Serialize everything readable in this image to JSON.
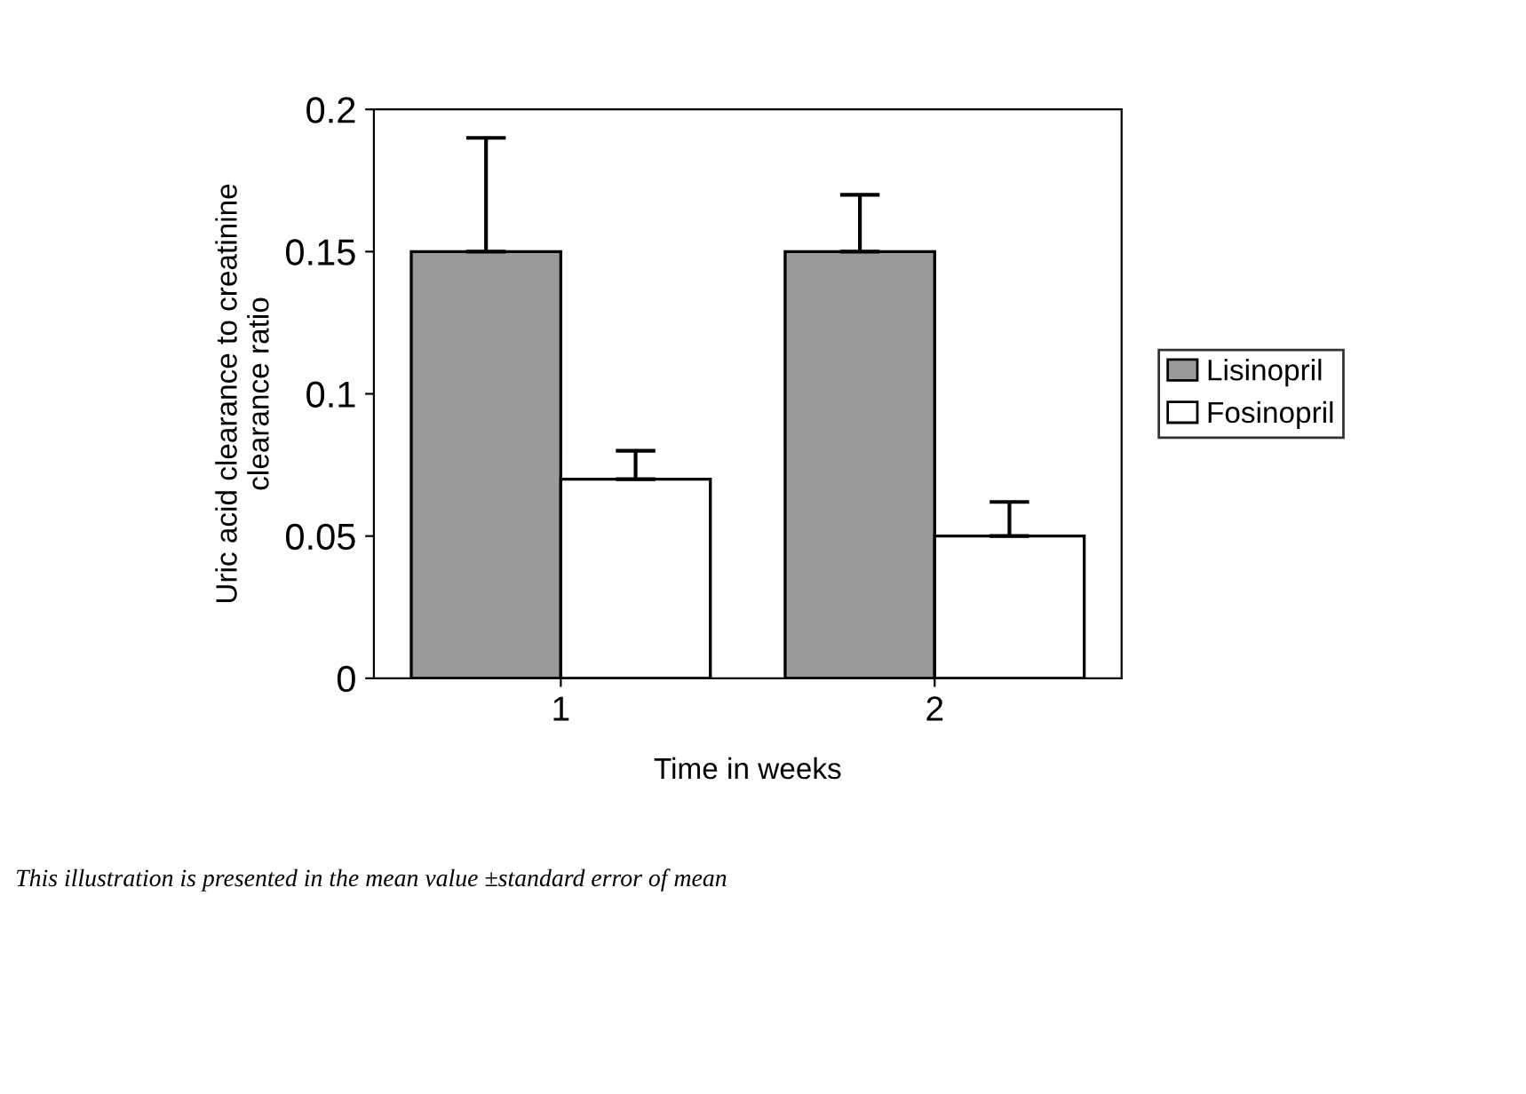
{
  "chart_data": {
    "type": "bar",
    "xlabel": "Time in weeks",
    "ylabel": "Uric acid clearance to creatinine\nclearance ratio",
    "categories": [
      "1",
      "2"
    ],
    "series": [
      {
        "name": "Lisinopril",
        "color": "#9a9a9a",
        "values": [
          0.15,
          0.15
        ],
        "errors": [
          [
            0.15,
            0.19
          ],
          [
            0.15,
            0.17
          ]
        ]
      },
      {
        "name": "Fosinopril",
        "color": "#ffffff",
        "values": [
          0.07,
          0.05
        ],
        "errors": [
          [
            0.07,
            0.08
          ],
          [
            0.05,
            0.062
          ]
        ]
      }
    ],
    "ylim": [
      0,
      0.2
    ],
    "yticks": [
      0,
      0.05,
      0.1,
      0.15,
      0.2
    ],
    "grid": false,
    "legend": "right",
    "annotations": [
      "This illustration is presented in the mean value ±standard error of mean"
    ]
  }
}
